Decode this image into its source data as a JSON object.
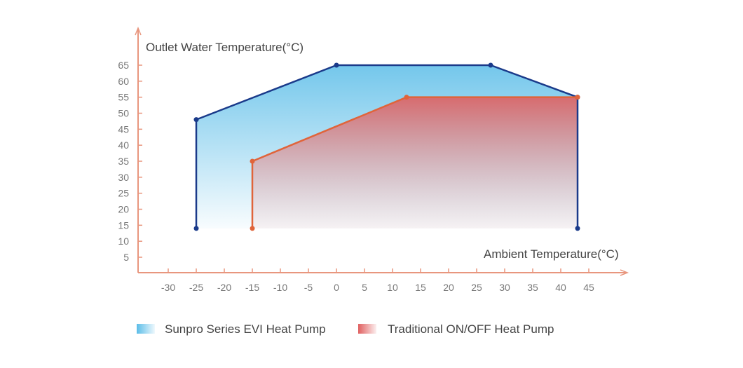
{
  "chart_data": {
    "type": "area",
    "ylabel": "Outlet Water Temperature(°C)",
    "xlabel": "Ambient Temperature(°C)",
    "xlim": [
      -35,
      50
    ],
    "ylim": [
      0,
      70
    ],
    "x_ticks": [
      -30,
      -25,
      -20,
      -15,
      -10,
      -5,
      0,
      5,
      10,
      15,
      20,
      25,
      30,
      35,
      40,
      45
    ],
    "y_ticks": [
      5,
      10,
      15,
      20,
      25,
      30,
      35,
      40,
      45,
      50,
      55,
      60,
      65
    ],
    "grid": false,
    "legend_position": "bottom",
    "series": [
      {
        "name": "Sunpro Series EVI Heat Pump",
        "color": "#1a3a8a",
        "fill": "#5bbde8",
        "points": [
          [
            -25,
            14
          ],
          [
            -25,
            48
          ],
          [
            0,
            65
          ],
          [
            27.5,
            65
          ],
          [
            43,
            55
          ],
          [
            43,
            14
          ]
        ]
      },
      {
        "name": "Traditional ON/OFF Heat Pump",
        "color": "#e0643a",
        "fill": "#e06060",
        "points": [
          [
            -15,
            14
          ],
          [
            -15,
            35
          ],
          [
            12.5,
            55
          ],
          [
            43,
            55
          ]
        ]
      }
    ],
    "axis_color": "#e8967e"
  }
}
